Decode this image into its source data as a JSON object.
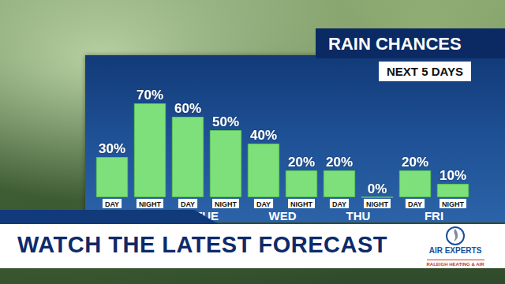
{
  "chart_data": {
    "type": "bar",
    "title": "RAIN CHANCES",
    "subtitle": "NEXT 5 DAYS",
    "categories": [
      "DAY",
      "NIGHT",
      "DAY",
      "NIGHT",
      "DAY",
      "NIGHT",
      "DAY",
      "NIGHT",
      "DAY",
      "NIGHT"
    ],
    "groups": [
      null,
      "TUE",
      "WED",
      "THU",
      "FRI"
    ],
    "values": [
      30,
      70,
      60,
      50,
      40,
      20,
      20,
      0,
      20,
      10
    ],
    "value_labels": [
      "30%",
      "70%",
      "60%",
      "50%",
      "40%",
      "20%",
      "20%",
      "0%",
      "20%",
      "10%"
    ],
    "color": "#7ee07a",
    "ylim": [
      0,
      100
    ],
    "grid": false,
    "data_labels": true,
    "tick_labels": "x"
  },
  "banner": "WATCH THE LATEST FORECAST",
  "logo": {
    "title": "AIR EXPERTS",
    "subtitle": "RALEIGH HEATING & AIR"
  }
}
